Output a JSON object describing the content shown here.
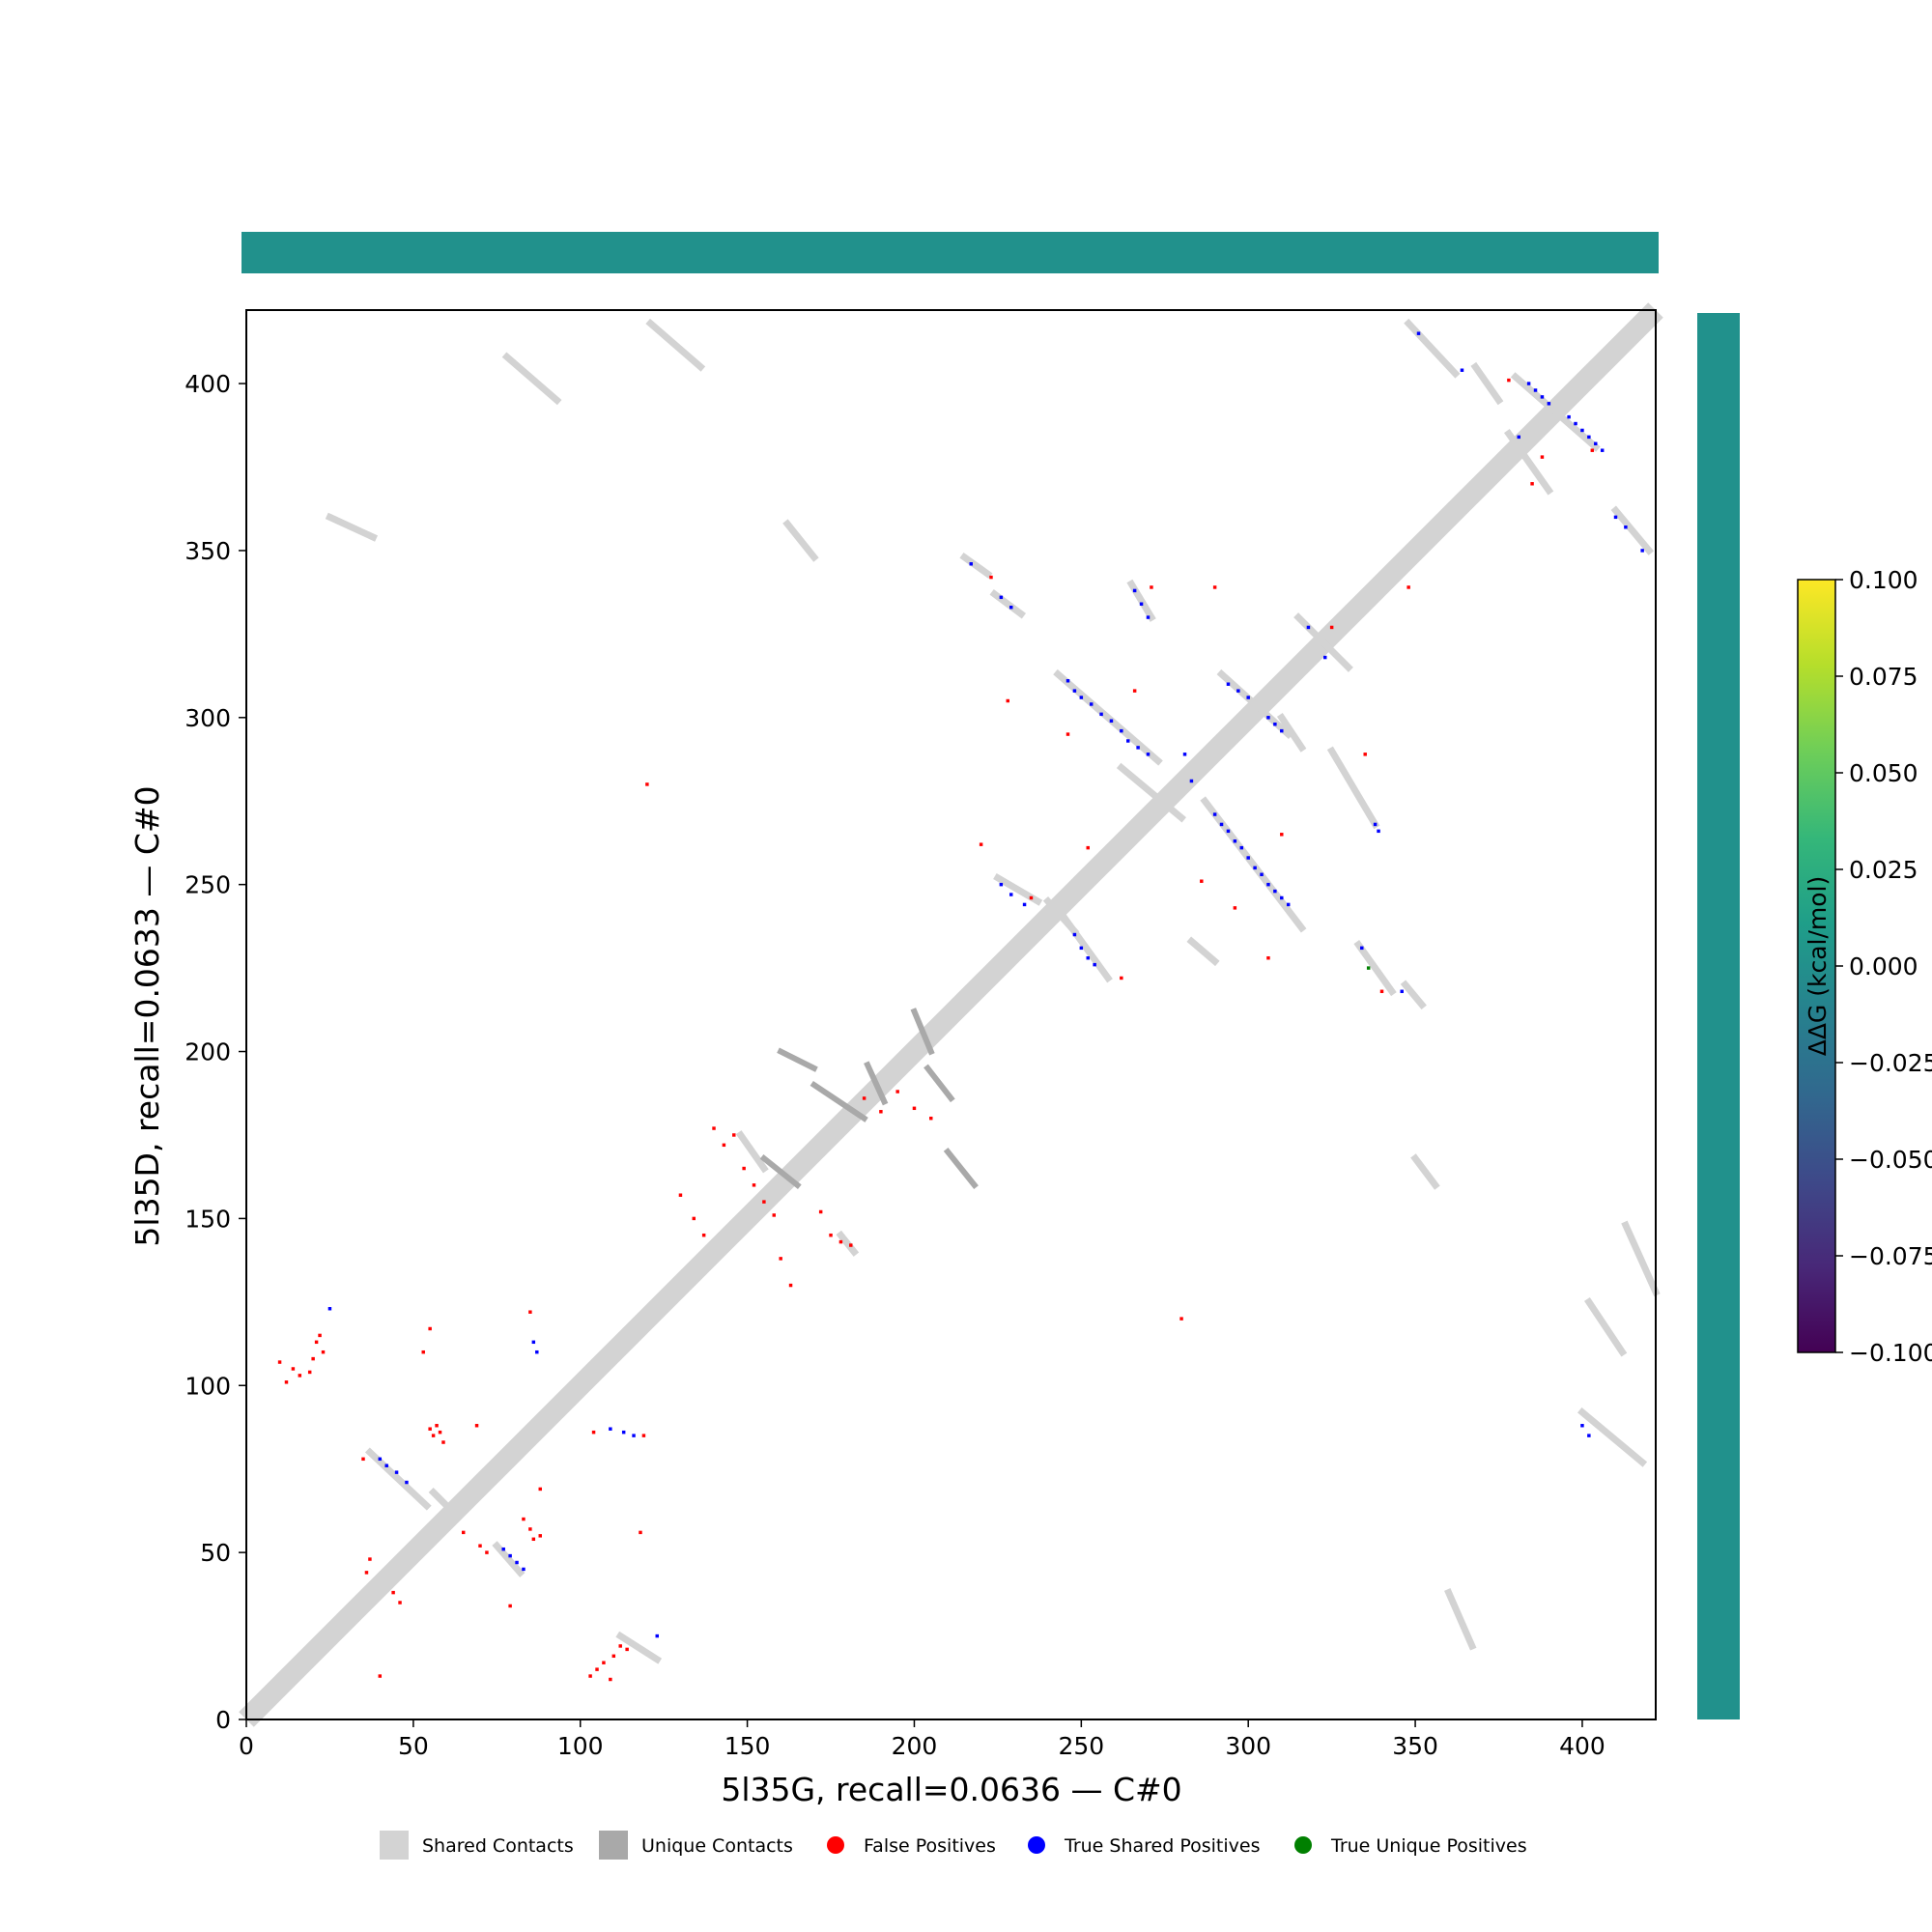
{
  "chart_data": {
    "type": "heatmap",
    "xlabel": "5l35G, recall=0.0636 — C#0",
    "ylabel": "5l35D, recall=0.0633 — C#0",
    "xlim": [
      0,
      422
    ],
    "ylim": [
      0,
      422
    ],
    "xticks": [
      0,
      50,
      100,
      150,
      200,
      250,
      300,
      350,
      400
    ],
    "yticks": [
      0,
      50,
      100,
      150,
      200,
      250,
      300,
      350,
      400
    ],
    "top_bar_color": "#21918c",
    "right_bar_color": "#21918c",
    "colorbar": {
      "label": "ΔΔG (kcal/mol)",
      "range": [
        -0.1,
        0.1
      ],
      "ticks": [
        "−0.100",
        "−0.075",
        "−0.050",
        "−0.025",
        "0.000",
        "0.025",
        "0.050",
        "0.075",
        "0.100"
      ],
      "colormap": [
        "#440154",
        "#482878",
        "#3e4989",
        "#31688e",
        "#26828e",
        "#1f9e89",
        "#35b779",
        "#6ece58",
        "#b5de2b",
        "#fde725"
      ]
    },
    "legend": {
      "placement": "bottom-center",
      "items": [
        {
          "label": "Shared Contacts",
          "marker": "square",
          "color": "#d3d3d3"
        },
        {
          "label": "Unique Contacts",
          "marker": "square",
          "color": "#a9a9a9"
        },
        {
          "label": "False Positives",
          "marker": "circle",
          "color": "#ff0000"
        },
        {
          "label": "True Shared Positives",
          "marker": "circle",
          "color": "#0000ff"
        },
        {
          "label": "True Unique Positives",
          "marker": "circle",
          "color": "#008000"
        }
      ]
    },
    "diagonal": {
      "from": 0,
      "to": 422,
      "color": "#d3d3d3"
    },
    "shared_segments": [
      [
        78,
        408,
        93,
        395
      ],
      [
        37,
        80,
        54,
        64
      ],
      [
        75,
        52,
        82,
        44
      ],
      [
        215,
        348,
        222,
        343
      ],
      [
        224,
        337,
        232,
        331
      ],
      [
        243,
        313,
        273,
        287
      ],
      [
        265,
        340,
        271,
        330
      ],
      [
        225,
        252,
        237,
        245
      ],
      [
        245,
        240,
        258,
        222
      ],
      [
        287,
        275,
        316,
        237
      ],
      [
        292,
        313,
        312,
        295
      ],
      [
        262,
        285,
        280,
        270
      ],
      [
        315,
        330,
        330,
        315
      ],
      [
        348,
        418,
        362,
        403
      ],
      [
        378,
        385,
        390,
        368
      ],
      [
        380,
        402,
        404,
        381
      ],
      [
        368,
        405,
        375,
        395
      ],
      [
        410,
        362,
        420,
        350
      ],
      [
        333,
        232,
        343,
        218
      ],
      [
        347,
        220,
        352,
        214
      ],
      [
        310,
        300,
        316,
        291
      ],
      [
        325,
        290,
        338,
        268
      ],
      [
        400,
        92,
        418,
        77
      ],
      [
        350,
        168,
        356,
        160
      ],
      [
        360,
        38,
        367,
        22
      ],
      [
        413,
        148,
        422,
        128
      ],
      [
        402,
        125,
        412,
        110
      ],
      [
        25,
        360,
        38,
        354
      ],
      [
        162,
        358,
        170,
        348
      ],
      [
        121,
        418,
        136,
        405
      ],
      [
        283,
        233,
        290,
        227
      ],
      [
        112,
        25,
        123,
        18
      ],
      [
        148,
        175,
        155,
        165
      ],
      [
        178,
        145,
        182,
        140
      ],
      [
        56,
        68,
        62,
        62
      ],
      [
        240,
        245,
        248,
        236
      ]
    ],
    "unique_segments": [
      [
        186,
        196,
        191,
        185
      ],
      [
        204,
        195,
        211,
        186
      ],
      [
        160,
        200,
        170,
        195
      ],
      [
        200,
        212,
        205,
        200
      ],
      [
        210,
        170,
        218,
        160
      ],
      [
        170,
        190,
        185,
        180
      ],
      [
        155,
        168,
        165,
        160
      ]
    ],
    "false_positives": [
      [
        10,
        107
      ],
      [
        12,
        101
      ],
      [
        14,
        105
      ],
      [
        16,
        103
      ],
      [
        19,
        104
      ],
      [
        20,
        108
      ],
      [
        21,
        113
      ],
      [
        22,
        115
      ],
      [
        23,
        110
      ],
      [
        35,
        78
      ],
      [
        40,
        13
      ],
      [
        55,
        87
      ],
      [
        56,
        85
      ],
      [
        57,
        88
      ],
      [
        58,
        86
      ],
      [
        59,
        83
      ],
      [
        55,
        117
      ],
      [
        53,
        110
      ],
      [
        65,
        56
      ],
      [
        69,
        88
      ],
      [
        70,
        52
      ],
      [
        72,
        50
      ],
      [
        79,
        34
      ],
      [
        83,
        60
      ],
      [
        85,
        57
      ],
      [
        86,
        54
      ],
      [
        88,
        55
      ],
      [
        88,
        69
      ],
      [
        85,
        122
      ],
      [
        103,
        13
      ],
      [
        105,
        15
      ],
      [
        107,
        17
      ],
      [
        109,
        12
      ],
      [
        110,
        19
      ],
      [
        112,
        22
      ],
      [
        114,
        21
      ],
      [
        118,
        56
      ],
      [
        120,
        280
      ],
      [
        119,
        85
      ],
      [
        130,
        157
      ],
      [
        134,
        150
      ],
      [
        137,
        145
      ],
      [
        140,
        177
      ],
      [
        143,
        172
      ],
      [
        146,
        175
      ],
      [
        149,
        165
      ],
      [
        152,
        160
      ],
      [
        155,
        155
      ],
      [
        158,
        151
      ],
      [
        160,
        138
      ],
      [
        163,
        130
      ],
      [
        172,
        152
      ],
      [
        175,
        145
      ],
      [
        178,
        143
      ],
      [
        181,
        142
      ],
      [
        185,
        186
      ],
      [
        190,
        182
      ],
      [
        195,
        188
      ],
      [
        200,
        183
      ],
      [
        205,
        180
      ],
      [
        220,
        262
      ],
      [
        223,
        342
      ],
      [
        228,
        305
      ],
      [
        235,
        246
      ],
      [
        246,
        295
      ],
      [
        252,
        261
      ],
      [
        262,
        222
      ],
      [
        266,
        308
      ],
      [
        271,
        339
      ],
      [
        280,
        120
      ],
      [
        286,
        251
      ],
      [
        290,
        339
      ],
      [
        296,
        243
      ],
      [
        306,
        228
      ],
      [
        310,
        265
      ],
      [
        325,
        327
      ],
      [
        335,
        289
      ],
      [
        340,
        218
      ],
      [
        348,
        339
      ],
      [
        378,
        401
      ],
      [
        385,
        370
      ],
      [
        388,
        378
      ],
      [
        403,
        380
      ],
      [
        46,
        35
      ],
      [
        44,
        38
      ],
      [
        37,
        48
      ],
      [
        36,
        44
      ],
      [
        104,
        86
      ]
    ],
    "true_shared_positives": [
      [
        40,
        78
      ],
      [
        42,
        76
      ],
      [
        45,
        74
      ],
      [
        48,
        71
      ],
      [
        77,
        51
      ],
      [
        79,
        49
      ],
      [
        81,
        47
      ],
      [
        83,
        45
      ],
      [
        86,
        113
      ],
      [
        87,
        110
      ],
      [
        25,
        123
      ],
      [
        109,
        87
      ],
      [
        113,
        86
      ],
      [
        116,
        85
      ],
      [
        123,
        25
      ],
      [
        217,
        346
      ],
      [
        226,
        336
      ],
      [
        229,
        333
      ],
      [
        226,
        250
      ],
      [
        229,
        247
      ],
      [
        233,
        244
      ],
      [
        246,
        311
      ],
      [
        248,
        308
      ],
      [
        250,
        306
      ],
      [
        253,
        304
      ],
      [
        256,
        301
      ],
      [
        259,
        299
      ],
      [
        262,
        296
      ],
      [
        264,
        293
      ],
      [
        267,
        291
      ],
      [
        270,
        289
      ],
      [
        266,
        338
      ],
      [
        268,
        334
      ],
      [
        270,
        330
      ],
      [
        248,
        235
      ],
      [
        250,
        231
      ],
      [
        252,
        228
      ],
      [
        254,
        226
      ],
      [
        281,
        289
      ],
      [
        283,
        281
      ],
      [
        290,
        271
      ],
      [
        292,
        268
      ],
      [
        294,
        266
      ],
      [
        296,
        263
      ],
      [
        298,
        261
      ],
      [
        300,
        258
      ],
      [
        302,
        255
      ],
      [
        304,
        253
      ],
      [
        306,
        250
      ],
      [
        308,
        248
      ],
      [
        310,
        246
      ],
      [
        312,
        244
      ],
      [
        294,
        310
      ],
      [
        297,
        308
      ],
      [
        300,
        306
      ],
      [
        306,
        300
      ],
      [
        308,
        298
      ],
      [
        310,
        296
      ],
      [
        318,
        327
      ],
      [
        323,
        318
      ],
      [
        334,
        231
      ],
      [
        338,
        268
      ],
      [
        339,
        266
      ],
      [
        346,
        218
      ],
      [
        351,
        415
      ],
      [
        364,
        404
      ],
      [
        381,
        384
      ],
      [
        384,
        400
      ],
      [
        386,
        398
      ],
      [
        388,
        396
      ],
      [
        390,
        394
      ],
      [
        396,
        390
      ],
      [
        398,
        388
      ],
      [
        400,
        386
      ],
      [
        402,
        384
      ],
      [
        404,
        382
      ],
      [
        406,
        380
      ],
      [
        410,
        360
      ],
      [
        413,
        357
      ],
      [
        418,
        350
      ],
      [
        400,
        88
      ],
      [
        402,
        85
      ]
    ],
    "true_unique_positives": [
      [
        336,
        225
      ]
    ]
  }
}
